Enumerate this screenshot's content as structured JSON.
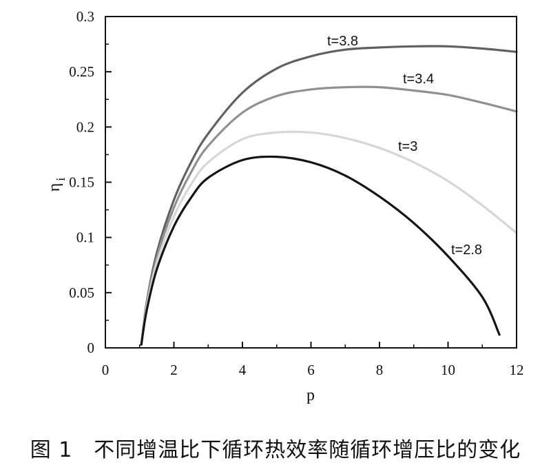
{
  "chart_data": {
    "type": "line",
    "xlabel": "p",
    "ylabel": "η",
    "ylabel_sub": "i",
    "xlim": [
      0,
      12
    ],
    "ylim": [
      0,
      0.3
    ],
    "xticks": [
      0,
      2,
      4,
      6,
      8,
      10,
      12
    ],
    "yticks": [
      0,
      0.05,
      0.1,
      0.15,
      0.2,
      0.25,
      0.3
    ],
    "xtick_labels": [
      "0",
      "2",
      "4",
      "6",
      "8",
      "10",
      "12"
    ],
    "ytick_labels": [
      "0",
      "0.05",
      "0.1",
      "0.15",
      "0.2",
      "0.25",
      "0.3"
    ],
    "grid": false,
    "series": [
      {
        "name": "t=3.8",
        "color": "#606060",
        "x": [
          1.05,
          1.2,
          1.5,
          2,
          2.5,
          3,
          4,
          5,
          6,
          7,
          8,
          9,
          10,
          11,
          12
        ],
        "y": [
          0.003,
          0.04,
          0.086,
          0.134,
          0.168,
          0.194,
          0.231,
          0.253,
          0.264,
          0.27,
          0.272,
          0.273,
          0.273,
          0.271,
          0.268
        ]
      },
      {
        "name": "t=3.4",
        "color": "#909090",
        "x": [
          1.05,
          1.2,
          1.5,
          2,
          2.5,
          3,
          4,
          5,
          6,
          7,
          8,
          9,
          10,
          11,
          12
        ],
        "y": [
          0.003,
          0.038,
          0.082,
          0.127,
          0.159,
          0.183,
          0.213,
          0.228,
          0.234,
          0.236,
          0.236,
          0.233,
          0.229,
          0.222,
          0.214
        ]
      },
      {
        "name": "t=3",
        "color": "#d6d6d6",
        "x": [
          1.05,
          1.2,
          1.5,
          2,
          2.5,
          3,
          4,
          5,
          6,
          7,
          8,
          9,
          10,
          11,
          12
        ],
        "y": [
          0.003,
          0.036,
          0.077,
          0.119,
          0.148,
          0.168,
          0.189,
          0.195,
          0.195,
          0.19,
          0.181,
          0.168,
          0.151,
          0.129,
          0.104
        ]
      },
      {
        "name": "t=2.8",
        "color": "#141414",
        "x": [
          1.05,
          1.2,
          1.5,
          2,
          2.5,
          3,
          4,
          5,
          6,
          7,
          8,
          9,
          10,
          11,
          11.5
        ],
        "y": [
          0.003,
          0.033,
          0.071,
          0.11,
          0.136,
          0.154,
          0.17,
          0.173,
          0.168,
          0.156,
          0.137,
          0.113,
          0.083,
          0.046,
          0.012
        ]
      }
    ]
  },
  "caption": "图 1　不同增温比下循环热效率随循环增压比的变化"
}
